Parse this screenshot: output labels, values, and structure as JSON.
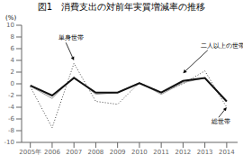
{
  "chart_data": {
    "type": "line",
    "title": "図1　消費支出の対前年実質増減率の推移",
    "ylabel": "(%)",
    "x": [
      2005,
      2006,
      2007,
      2008,
      2009,
      2010,
      2011,
      2012,
      2013,
      2014
    ],
    "series": [
      {
        "color": "#444444",
        "line_style": "dotted",
        "values": [
          -0.5,
          -7.5,
          3.5,
          -3.0,
          -3.5,
          0.2,
          -1.5,
          0.0,
          2.2,
          -4.0
        ]
      },
      {
        "color": "#999999",
        "line_style": "solid",
        "values": [
          -0.4,
          -2.5,
          1.2,
          -1.8,
          -1.5,
          0.2,
          -1.8,
          0.2,
          1.0,
          -3.0
        ]
      },
      {
        "color": "#111111",
        "line_style": "solid",
        "values": [
          -0.3,
          -2.0,
          1.0,
          -1.5,
          -1.5,
          0.1,
          -1.5,
          0.5,
          1.0,
          -3.0
        ]
      }
    ],
    "xlim": [
      2004.6,
      2014.5
    ],
    "xticks": [
      {
        "value": 2005,
        "label": "2005年"
      },
      2006,
      2007,
      2008,
      2009,
      2010,
      2011,
      2012,
      2013,
      2014
    ],
    "ylim": [
      -10,
      10
    ],
    "yticks": [
      -10,
      -8,
      -6,
      -4,
      -2,
      0,
      2,
      4,
      6,
      8,
      10
    ],
    "grid": false,
    "annotations": [
      {
        "text": "単身世帯",
        "xy": [
          2007,
          4.0
        ],
        "xytext": [
          2006.3,
          7.8
        ]
      },
      {
        "text": "二人以上の世帯",
        "xy": [
          2012,
          1.8
        ],
        "xytext": [
          2012.8,
          6.5
        ]
      },
      {
        "text": "総世帯",
        "xy": [
          2014,
          -4.0
        ],
        "xytext": [
          2013.3,
          -6.5
        ]
      }
    ]
  }
}
